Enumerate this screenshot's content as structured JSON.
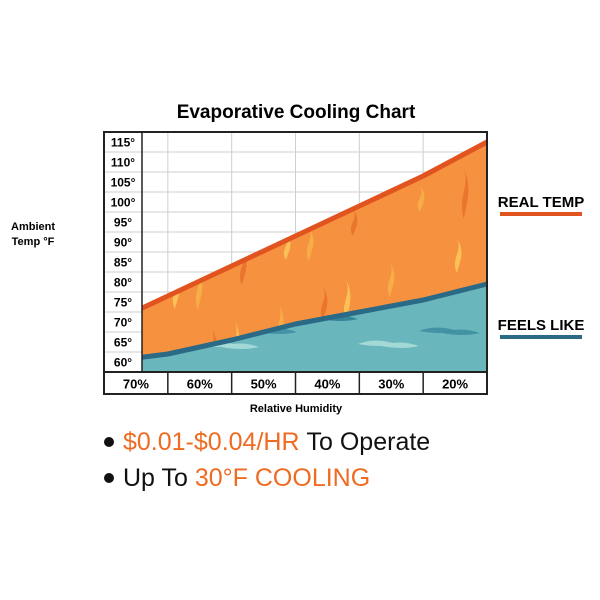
{
  "chart_data": {
    "type": "area",
    "title": "Evaporative Cooling Chart",
    "xlabel": "Relative Humidity",
    "ylabel_line1": "Ambient",
    "ylabel_line2": "Temp °F",
    "categories": [
      "70%",
      "60%",
      "50%",
      "40%",
      "30%",
      "20%"
    ],
    "yticks": [
      "115°",
      "110°",
      "105°",
      "100°",
      "95°",
      "90°",
      "85°",
      "80°",
      "75°",
      "70°",
      "65°",
      "60°"
    ],
    "ylim": [
      57.5,
      117.5
    ],
    "x": [
      0,
      1,
      2,
      3,
      4,
      5,
      6
    ],
    "series": [
      {
        "name": "REAL TEMP",
        "color": "#e2541f",
        "values": [
          69,
          76.5,
          84,
          91.5,
          99,
          106.5,
          115
        ]
      },
      {
        "name": "FEELS LIKE",
        "color": "#2a6a86",
        "values": [
          60,
          62,
          65.5,
          69.5,
          72.5,
          75.5,
          79.5
        ]
      }
    ],
    "fill_colors": {
      "warm": "#f6923f",
      "cool": "#6ab6bd"
    },
    "grid": true,
    "legend_position": "right"
  },
  "bullets": [
    {
      "highlight": "$0.01-$0.04/HR",
      "text": "To Operate"
    },
    {
      "text": "Up To",
      "highlight": "30°F COOLING"
    }
  ]
}
